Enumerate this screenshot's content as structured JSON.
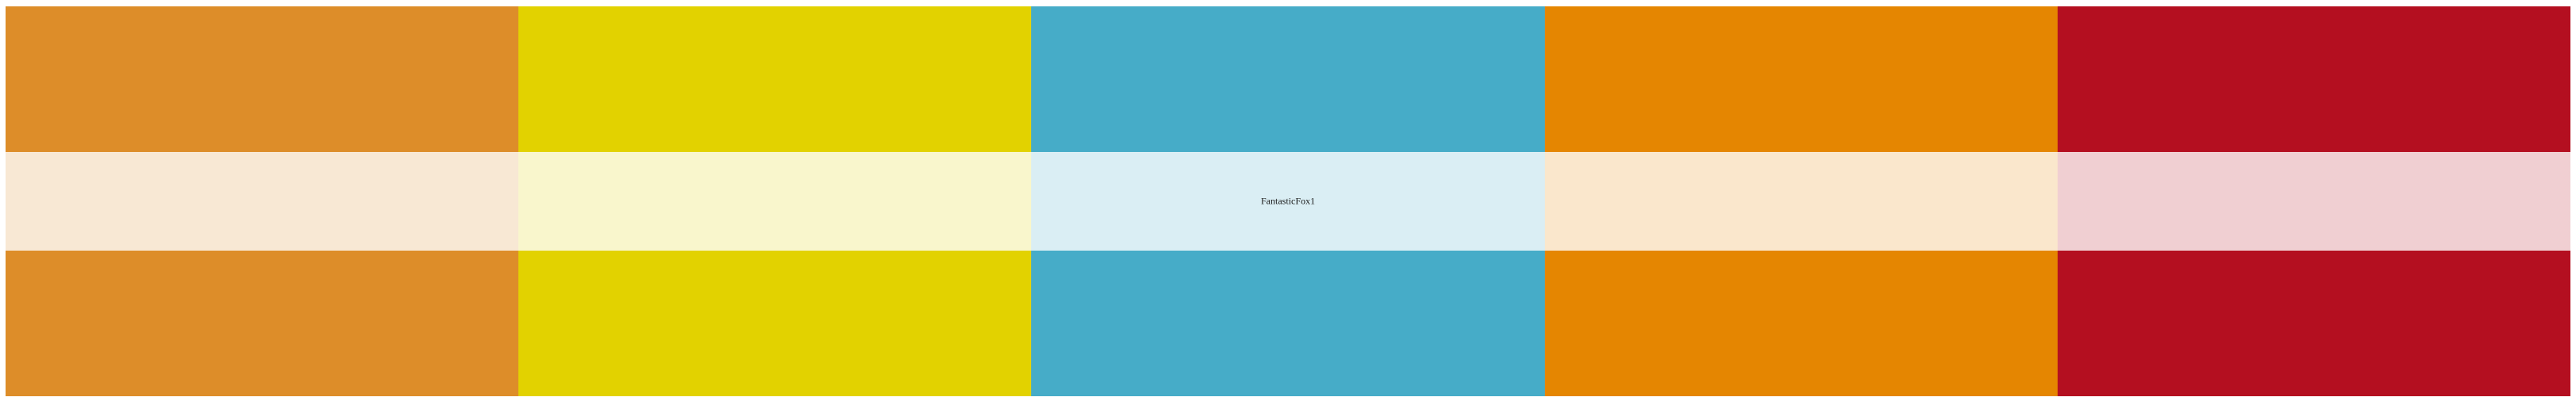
{
  "palette": {
    "name": "FantasticFox1",
    "colors": [
      "#DD8D29",
      "#E2D200",
      "#46ACC8",
      "#E58601",
      "#B40F20"
    ],
    "tints": [
      "#F8E8D4",
      "#F9F6CC",
      "#DAEEF4",
      "#FAE7CC",
      "#F0CFD2"
    ]
  }
}
